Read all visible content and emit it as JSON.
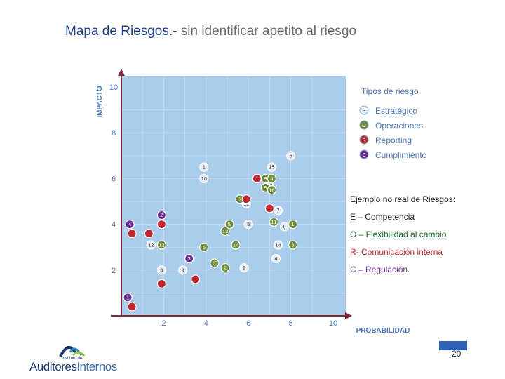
{
  "title": {
    "main": "Mapa de Riesgos.-",
    "sub": " sin identificar apetito al riesgo"
  },
  "chart_data": {
    "type": "scatter",
    "xlabel": "PROBABILIDAD",
    "ylabel": "IMPACTO",
    "xlim": [
      0,
      10
    ],
    "ylim": [
      0,
      10
    ],
    "x_ticks": [
      "2",
      "4",
      "6",
      "8",
      "10"
    ],
    "y_ticks": [
      "2",
      "4",
      "6",
      "8",
      "10"
    ],
    "legend_title": "Tipos de riesgo",
    "legend_placement": "top-right",
    "series": [
      {
        "name": "Estratégico",
        "code": "E",
        "color": "#e6ecf4",
        "text_color": "#333333",
        "points": [
          {
            "label": "1",
            "x": 3.9,
            "y": 6.5
          },
          {
            "label": "10",
            "x": 3.9,
            "y": 6.0
          },
          {
            "label": "15",
            "x": 7.1,
            "y": 6.5
          },
          {
            "label": "6",
            "x": 8.0,
            "y": 7.0
          },
          {
            "label": "13",
            "x": 7.0,
            "y": 5.7
          },
          {
            "label": "11",
            "x": 5.9,
            "y": 4.9
          },
          {
            "label": "7",
            "x": 7.4,
            "y": 4.6
          },
          {
            "label": "5",
            "x": 6.0,
            "y": 4.0
          },
          {
            "label": "9",
            "x": 7.7,
            "y": 3.9
          },
          {
            "label": "14",
            "x": 7.4,
            "y": 3.1
          },
          {
            "label": "4",
            "x": 7.3,
            "y": 2.5
          },
          {
            "label": "3",
            "x": 1.9,
            "y": 2.0
          },
          {
            "label": "9",
            "x": 2.9,
            "y": 2.0
          },
          {
            "label": "2",
            "x": 5.8,
            "y": 2.1
          },
          {
            "label": "12",
            "x": 1.4,
            "y": 3.1
          }
        ]
      },
      {
        "name": "Operaciones",
        "code": "O",
        "color": "#6f8a3a",
        "text_color": "#ffffff",
        "points": [
          {
            "label": "9",
            "x": 6.8,
            "y": 6.0
          },
          {
            "label": "4",
            "x": 7.1,
            "y": 6.0
          },
          {
            "label": "8",
            "x": 6.8,
            "y": 5.6
          },
          {
            "label": "16",
            "x": 7.1,
            "y": 5.5
          },
          {
            "label": "7",
            "x": 5.6,
            "y": 5.1
          },
          {
            "label": "5",
            "x": 5.1,
            "y": 4.0
          },
          {
            "label": "13",
            "x": 4.9,
            "y": 3.7
          },
          {
            "label": "11",
            "x": 7.2,
            "y": 4.1
          },
          {
            "label": "1",
            "x": 8.1,
            "y": 4.0
          },
          {
            "label": "3",
            "x": 8.1,
            "y": 3.1
          },
          {
            "label": "14",
            "x": 5.4,
            "y": 3.1
          },
          {
            "label": "6",
            "x": 3.9,
            "y": 3.0
          },
          {
            "label": "10",
            "x": 4.4,
            "y": 2.3
          },
          {
            "label": "2",
            "x": 4.9,
            "y": 2.1
          },
          {
            "label": "12",
            "x": 1.9,
            "y": 3.1
          }
        ]
      },
      {
        "name": "Reporting",
        "code": "R",
        "color": "#c0272d",
        "text_color": "#ffffff",
        "points": [
          {
            "label": "1",
            "x": 6.4,
            "y": 6.0
          },
          {
            "label": "",
            "x": 5.9,
            "y": 5.1
          },
          {
            "label": "",
            "x": 7.0,
            "y": 4.7
          },
          {
            "label": "",
            "x": 1.9,
            "y": 4.0
          },
          {
            "label": "",
            "x": 0.5,
            "y": 3.6
          },
          {
            "label": "",
            "x": 1.3,
            "y": 3.6
          },
          {
            "label": "",
            "x": 3.5,
            "y": 1.6
          },
          {
            "label": "",
            "x": 1.9,
            "y": 1.4
          },
          {
            "label": "",
            "x": 0.5,
            "y": 0.4
          }
        ]
      },
      {
        "name": "Cumplimiento",
        "code": "C",
        "color": "#6a2c91",
        "text_color": "#ffffff",
        "points": [
          {
            "label": "2",
            "x": 1.9,
            "y": 4.4
          },
          {
            "label": "4",
            "x": 0.4,
            "y": 4.0
          },
          {
            "label": "3",
            "x": 3.2,
            "y": 2.5
          },
          {
            "label": "1",
            "x": 0.3,
            "y": 0.8
          }
        ]
      }
    ]
  },
  "note": {
    "heading": "Ejemplo no real de Riesgos:",
    "items": [
      {
        "text": "E – Competencia",
        "color": "#222222"
      },
      {
        "text": "O – Flexibilidad al cambio",
        "color": "#1a6b2a"
      },
      {
        "text": "R- Comunicación interna",
        "color": "#c0272d"
      },
      {
        "text": "C – Regulación.",
        "color": "#6a2c91"
      }
    ]
  },
  "logo": {
    "small_top": "Instituto de",
    "brand_a": "Auditores",
    "brand_b": "Internos"
  },
  "page_number": "20"
}
